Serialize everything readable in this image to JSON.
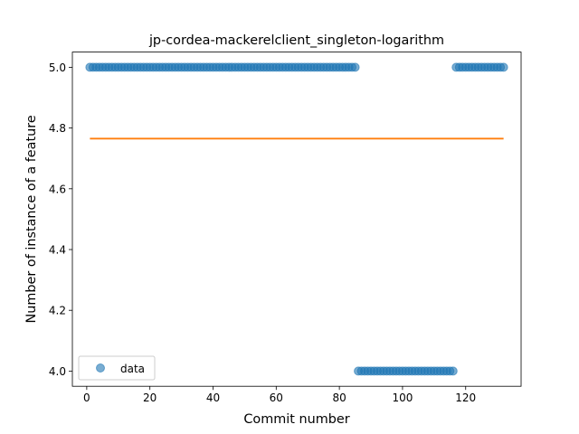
{
  "chart_data": {
    "type": "scatter",
    "title": "jp-cordea-mackerelclient_singleton-logarithm",
    "xlabel": "Commit number",
    "ylabel": "Number of instance of a feature",
    "xlim": [
      -4.55,
      137.55
    ],
    "ylim": [
      3.95,
      5.05
    ],
    "x_ticks": [
      0,
      20,
      40,
      60,
      80,
      100,
      120
    ],
    "y_ticks": [
      "4.0",
      "4.2",
      "4.4",
      "4.6",
      "4.8",
      "5.0"
    ],
    "legend": {
      "position": "lower-left",
      "label": "data"
    },
    "series": [
      {
        "name": "data",
        "kind": "points",
        "color": "#1f77b4",
        "segments": [
          {
            "x_start": 1,
            "x_end": 85,
            "y": 5
          },
          {
            "x_start": 86,
            "x_end": 116,
            "y": 4
          },
          {
            "x_start": 117,
            "x_end": 132,
            "y": 5
          }
        ]
      },
      {
        "kind": "line",
        "color": "#ff7f0e",
        "x": [
          1,
          132
        ],
        "y": [
          4.7652,
          4.7652
        ]
      }
    ]
  }
}
